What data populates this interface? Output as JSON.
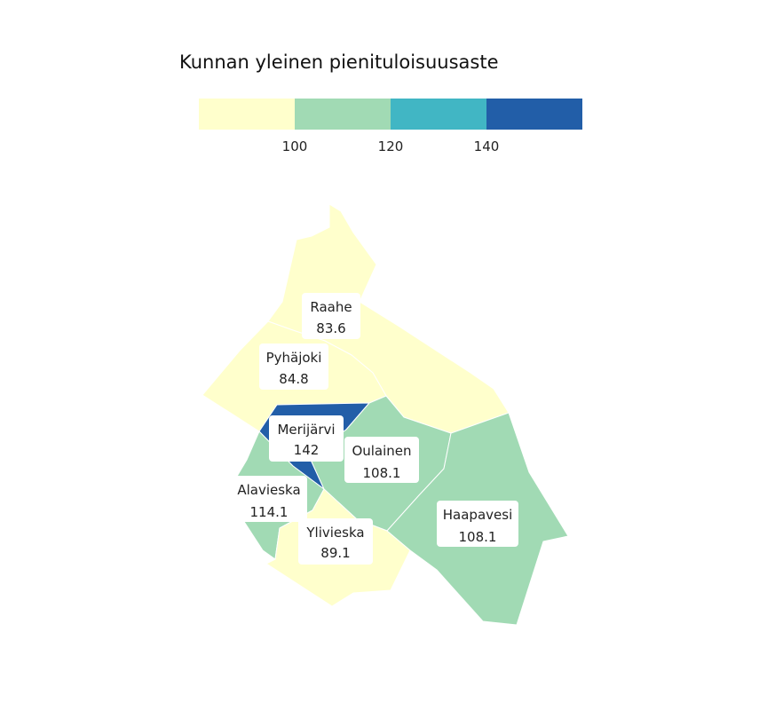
{
  "legend": {
    "title": "Kunnan yleinen pienituloisuusaste",
    "ticks": [
      "100",
      "120",
      "140"
    ],
    "colors": [
      "#ffffcc",
      "#a1dab4",
      "#41b6c4",
      "#225ea8"
    ]
  },
  "regions": [
    {
      "name": "Raahe",
      "value": "83.6",
      "color": "#ffffcc"
    },
    {
      "name": "Pyhäjoki",
      "value": "84.8",
      "color": "#ffffcc"
    },
    {
      "name": "Merijärvi",
      "value": "142",
      "color": "#225ea8"
    },
    {
      "name": "Oulainen",
      "value": "108.1",
      "color": "#a1dab4"
    },
    {
      "name": "Alavieska",
      "value": "114.1",
      "color": "#a1dab4"
    },
    {
      "name": "Ylivieska",
      "value": "89.1",
      "color": "#ffffcc"
    },
    {
      "name": "Haapavesi",
      "value": "108.1",
      "color": "#a1dab4"
    }
  ]
}
